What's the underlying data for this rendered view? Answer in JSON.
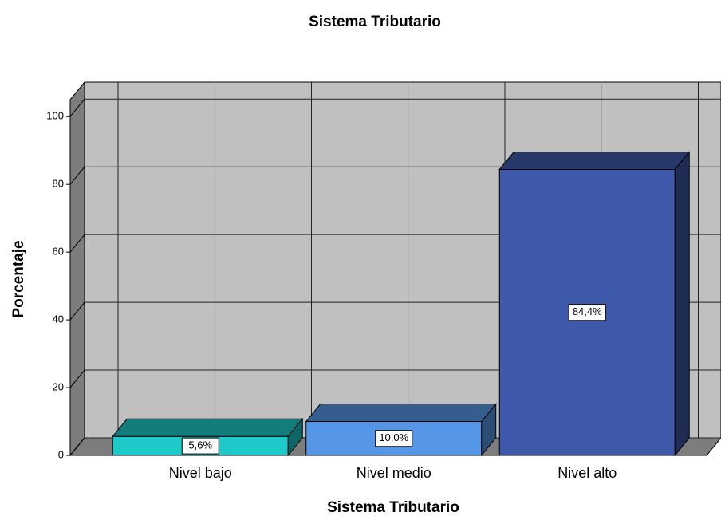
{
  "chart_data": {
    "type": "bar3d",
    "title": "Sistema Tributario",
    "x_label": "Sistema Tributario",
    "y_label": "Porcentaje",
    "categories": [
      "Nivel bajo",
      "Nivel medio",
      "Nivel alto"
    ],
    "values": [
      5.6,
      10.0,
      84.4
    ],
    "value_labels": [
      "5,6%",
      "10,0%",
      "84,4%"
    ],
    "colors": [
      "#1ec9c9",
      "#5597e6",
      "#3e59a9"
    ],
    "ylim": [
      0,
      105
    ],
    "yticks": [
      0,
      20,
      40,
      60,
      80,
      100
    ],
    "grid": true
  }
}
